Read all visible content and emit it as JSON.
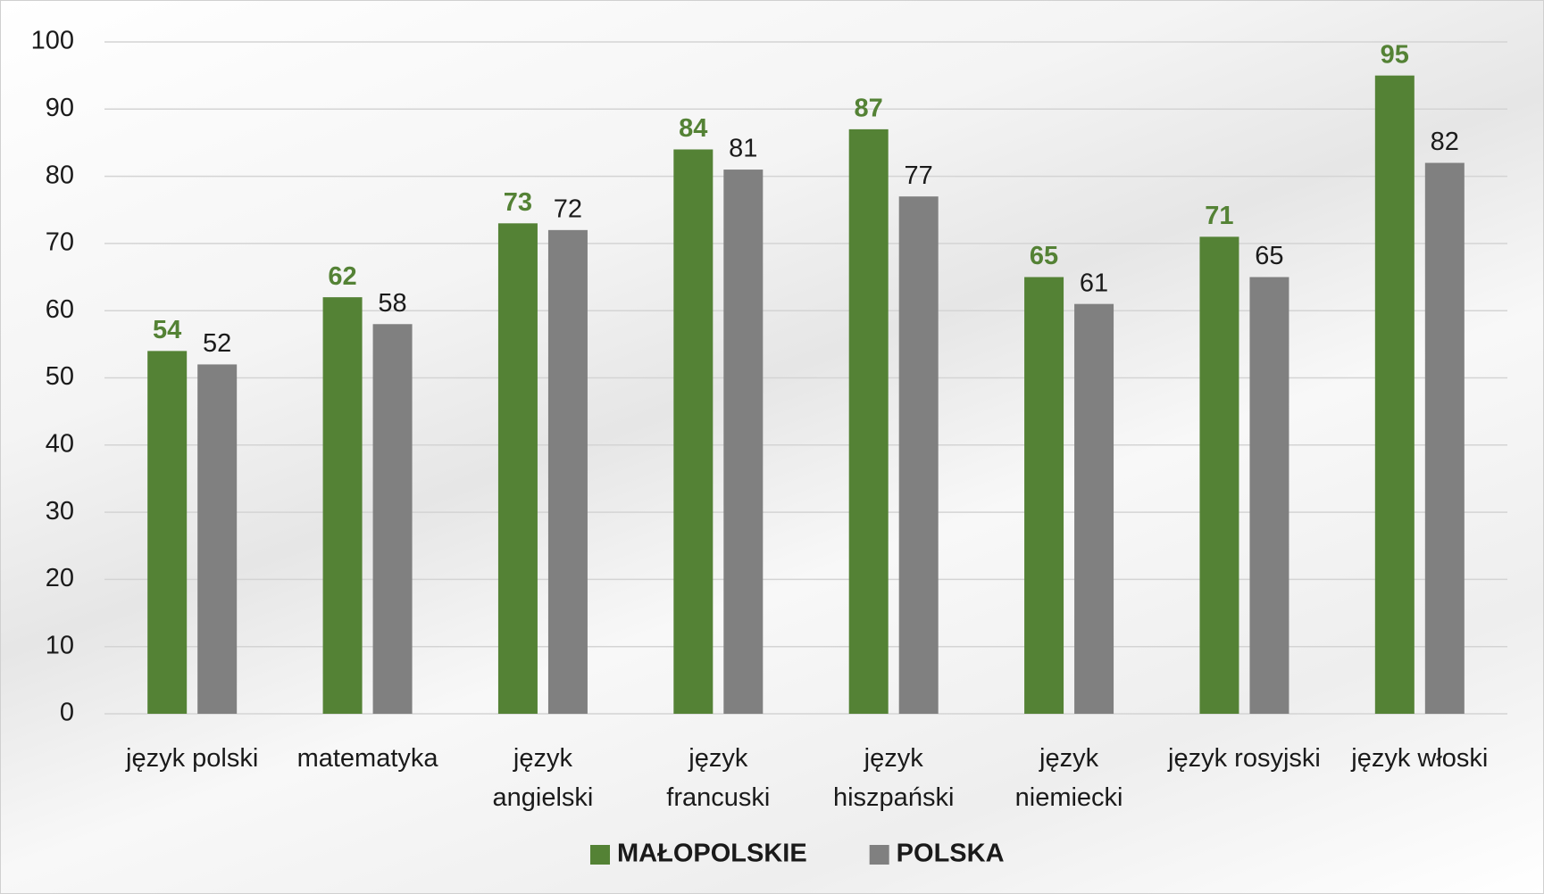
{
  "chart_data": {
    "type": "bar",
    "categories": [
      "język polski",
      "matematyka",
      "język\nangielski",
      "język\nfrancuski",
      "język\nhiszpański",
      "język\nniemiecki",
      "język rosyjski",
      "język włoski"
    ],
    "series": [
      {
        "name": "MAŁOPOLSKIE",
        "color": "#548235",
        "values": [
          54,
          62,
          73,
          84,
          87,
          65,
          71,
          95
        ]
      },
      {
        "name": "POLSKA",
        "color": "#808080",
        "values": [
          52,
          58,
          72,
          81,
          77,
          61,
          65,
          82
        ]
      }
    ],
    "ylim": [
      0,
      100
    ],
    "yticks": [
      0,
      10,
      20,
      30,
      40,
      50,
      60,
      70,
      80,
      90,
      100
    ],
    "grid": true,
    "legend": "bottom"
  }
}
